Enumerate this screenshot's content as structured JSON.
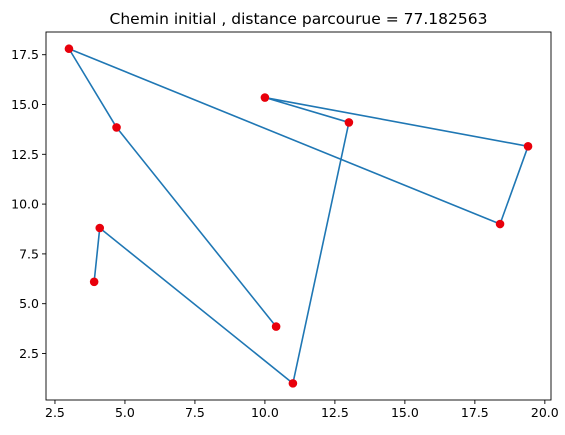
{
  "chart_data": {
    "type": "scatter",
    "title": "Chemin initial , distance parcourue = 77.182563",
    "xlabel": "",
    "ylabel": "",
    "xlim": [
      2.18,
      20.22
    ],
    "ylim": [
      0.165,
      18.64
    ],
    "x_ticks": [
      2.5,
      5.0,
      7.5,
      10.0,
      12.5,
      15.0,
      17.5,
      20.0
    ],
    "x_tick_labels": [
      "2.5",
      "5.0",
      "7.5",
      "10.0",
      "12.5",
      "15.0",
      "17.5",
      "20.0"
    ],
    "y_ticks": [
      2.5,
      5.0,
      7.5,
      10.0,
      12.5,
      15.0,
      17.5
    ],
    "y_tick_labels": [
      "2.5",
      "5.0",
      "7.5",
      "10.0",
      "12.5",
      "15.0",
      "17.5"
    ],
    "grid": false,
    "series": [
      {
        "kind": "line",
        "color": "#1f77b4",
        "points": [
          [
            3.9,
            6.1
          ],
          [
            4.1,
            8.8
          ],
          [
            11.0,
            1.0
          ],
          [
            13.0,
            14.1
          ],
          [
            10.0,
            15.35
          ],
          [
            19.4,
            12.9
          ],
          [
            18.4,
            9.0
          ],
          [
            3.0,
            17.8
          ],
          [
            4.7,
            13.85
          ],
          [
            10.4,
            3.85
          ]
        ]
      },
      {
        "kind": "scatter",
        "color": "#e8000b",
        "points": [
          [
            3.9,
            6.1
          ],
          [
            4.1,
            8.8
          ],
          [
            11.0,
            1.0
          ],
          [
            13.0,
            14.1
          ],
          [
            10.0,
            15.35
          ],
          [
            19.4,
            12.9
          ],
          [
            18.4,
            9.0
          ],
          [
            3.0,
            17.8
          ],
          [
            4.7,
            13.85
          ],
          [
            10.4,
            3.85
          ]
        ]
      }
    ]
  }
}
